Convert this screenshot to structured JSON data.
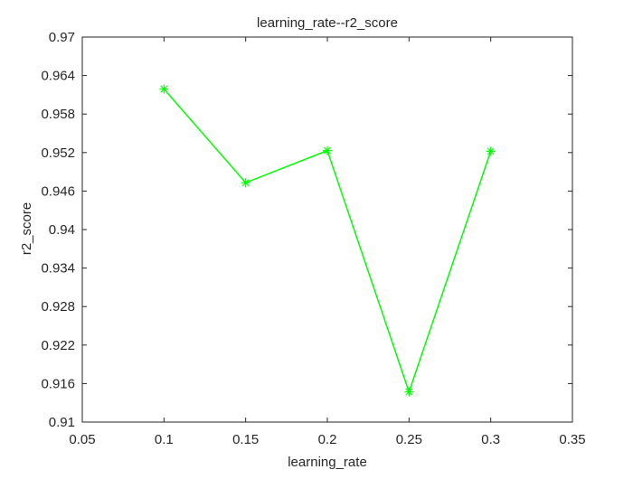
{
  "chart_data": {
    "type": "line",
    "title": "learning_rate--r2_score",
    "xlabel": "learning_rate",
    "ylabel": "r2_score",
    "xlim": [
      0.05,
      0.35
    ],
    "ylim": [
      0.91,
      0.97
    ],
    "xticks": [
      0.05,
      0.1,
      0.15,
      0.2,
      0.25,
      0.3,
      0.35
    ],
    "xtick_labels": [
      "0.05",
      "0.1",
      "0.15",
      "0.2",
      "0.25",
      "0.3",
      "0.35"
    ],
    "yticks": [
      0.91,
      0.916,
      0.922,
      0.928,
      0.934,
      0.94,
      0.946,
      0.952,
      0.958,
      0.964,
      0.97
    ],
    "ytick_labels": [
      "0.91",
      "0.916",
      "0.922",
      "0.928",
      "0.934",
      "0.94",
      "0.946",
      "0.952",
      "0.958",
      "0.964",
      "0.97"
    ],
    "grid": false,
    "legend": "none",
    "series": [
      {
        "x": [
          0.1,
          0.15,
          0.2,
          0.25,
          0.3
        ],
        "y": [
          0.9619,
          0.9473,
          0.9523,
          0.9147,
          0.9522
        ],
        "color": "#00ff00",
        "marker": "asterisk"
      }
    ]
  }
}
